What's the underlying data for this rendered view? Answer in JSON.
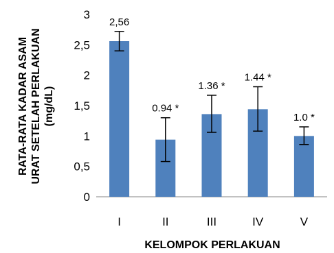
{
  "chart_data": {
    "type": "bar",
    "categories": [
      "I",
      "II",
      "III",
      "IV",
      "V"
    ],
    "values": [
      2.56,
      0.94,
      1.36,
      1.44,
      1.0
    ],
    "error_low": [
      2.4,
      0.58,
      1.06,
      1.08,
      0.86
    ],
    "error_high": [
      2.72,
      1.3,
      1.67,
      1.81,
      1.15
    ],
    "data_labels": [
      "2,56",
      "0.94 *",
      "1.36 *",
      "1.44 *",
      "1.0 *"
    ],
    "ylim": [
      0,
      3
    ],
    "y_ticks": [
      0,
      0.5,
      1,
      1.5,
      2,
      2.5,
      3
    ],
    "y_tick_labels": [
      "0",
      "0,5",
      "1",
      "1,5",
      "2",
      "2,5",
      "3"
    ],
    "xlabel": "KELOMPOK PERLAKUAN",
    "ylabel_lines": [
      "RATA-RATA KADAR ASAM",
      "URAT SETELAH PERLAKUAN",
      "(mg/dL)"
    ],
    "grid": false,
    "bar_color": "#4f81bd"
  }
}
